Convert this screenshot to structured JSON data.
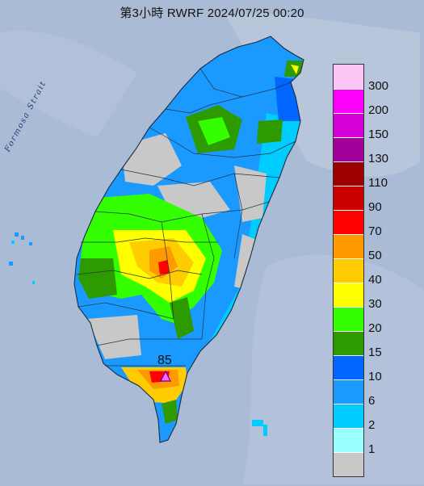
{
  "title": "第3小時 RWRF 2024/07/25 00:20",
  "map_label": "Formosa Strait",
  "max_value": "85",
  "legend": {
    "colors": [
      "#fbc6f4",
      "#fb00fb",
      "#d500d5",
      "#a10099",
      "#9c0000",
      "#cc0000",
      "#ff0000",
      "#ff9900",
      "#ffcc00",
      "#ffff00",
      "#33ff00",
      "#2d9a00",
      "#0066ff",
      "#1a99ff",
      "#00ccff",
      "#99ffff",
      "#c8c8c8"
    ],
    "labels": [
      "300",
      "200",
      "150",
      "130",
      "110",
      "90",
      "70",
      "50",
      "40",
      "30",
      "20",
      "15",
      "10",
      "6",
      "2",
      "1",
      ""
    ]
  },
  "colors": {
    "sea": "#aabbd6",
    "land_rain": "#1a99ff"
  }
}
